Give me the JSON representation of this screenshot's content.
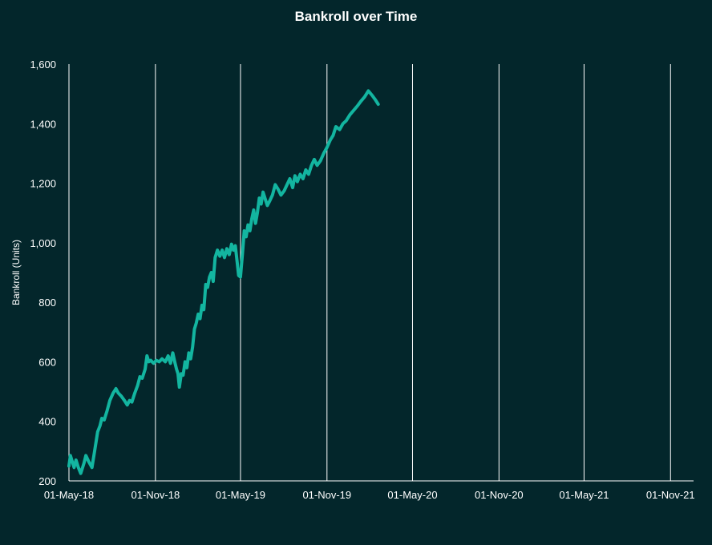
{
  "chart_data": {
    "type": "line",
    "title": "Bankroll over Time",
    "xlabel": "",
    "ylabel": "Bankroll (Units)",
    "ylim": [
      200,
      1600
    ],
    "xlim": [
      "2018-05-01",
      "2021-12-20"
    ],
    "grid": "vertical lines at x ticks",
    "legend": "none",
    "x_ticks": [
      {
        "date": "2018-05-01",
        "label": "01-May-18"
      },
      {
        "date": "2018-11-01",
        "label": "01-Nov-18"
      },
      {
        "date": "2019-05-01",
        "label": "01-May-19"
      },
      {
        "date": "2019-11-01",
        "label": "01-Nov-19"
      },
      {
        "date": "2020-05-01",
        "label": "01-May-20"
      },
      {
        "date": "2020-11-01",
        "label": "01-Nov-20"
      },
      {
        "date": "2021-05-01",
        "label": "01-May-21"
      },
      {
        "date": "2021-11-01",
        "label": "01-Nov-21"
      }
    ],
    "y_ticks": [
      {
        "value": 200,
        "label": "200"
      },
      {
        "value": 400,
        "label": "400"
      },
      {
        "value": 600,
        "label": "600"
      },
      {
        "value": 800,
        "label": "800"
      },
      {
        "value": 1000,
        "label": "1,000"
      },
      {
        "value": 1200,
        "label": "1,200"
      },
      {
        "value": 1400,
        "label": "1,400"
      },
      {
        "value": 1600,
        "label": "1,600"
      }
    ],
    "colors": {
      "background": "#03262b",
      "line": "#13b5a0",
      "grid": "#ffffff",
      "text": "#ffffff"
    },
    "series": [
      {
        "points": [
          [
            "2018-05-01",
            250
          ],
          [
            "2018-05-04",
            285
          ],
          [
            "2018-05-08",
            265
          ],
          [
            "2018-05-12",
            245
          ],
          [
            "2018-05-16",
            270
          ],
          [
            "2018-05-21",
            245
          ],
          [
            "2018-05-26",
            225
          ],
          [
            "2018-06-02",
            260
          ],
          [
            "2018-06-06",
            285
          ],
          [
            "2018-06-12",
            265
          ],
          [
            "2018-06-19",
            245
          ],
          [
            "2018-06-24",
            295
          ],
          [
            "2018-07-01",
            365
          ],
          [
            "2018-07-06",
            385
          ],
          [
            "2018-07-10",
            410
          ],
          [
            "2018-07-15",
            405
          ],
          [
            "2018-07-21",
            435
          ],
          [
            "2018-07-27",
            470
          ],
          [
            "2018-08-03",
            495
          ],
          [
            "2018-08-09",
            510
          ],
          [
            "2018-08-14",
            495
          ],
          [
            "2018-08-20",
            485
          ],
          [
            "2018-08-27",
            470
          ],
          [
            "2018-09-02",
            455
          ],
          [
            "2018-09-07",
            470
          ],
          [
            "2018-09-12",
            465
          ],
          [
            "2018-09-18",
            495
          ],
          [
            "2018-09-24",
            520
          ],
          [
            "2018-09-29",
            550
          ],
          [
            "2018-10-04",
            545
          ],
          [
            "2018-10-10",
            575
          ],
          [
            "2018-10-14",
            620
          ],
          [
            "2018-10-18",
            600
          ],
          [
            "2018-10-22",
            605
          ],
          [
            "2018-10-28",
            595
          ],
          [
            "2018-11-03",
            605
          ],
          [
            "2018-11-09",
            600
          ],
          [
            "2018-11-15",
            610
          ],
          [
            "2018-11-22",
            600
          ],
          [
            "2018-11-28",
            620
          ],
          [
            "2018-12-03",
            595
          ],
          [
            "2018-12-08",
            630
          ],
          [
            "2018-12-12",
            600
          ],
          [
            "2018-12-16",
            575
          ],
          [
            "2018-12-19",
            560
          ],
          [
            "2018-12-22",
            515
          ],
          [
            "2018-12-26",
            560
          ],
          [
            "2018-12-30",
            555
          ],
          [
            "2019-01-03",
            600
          ],
          [
            "2019-01-07",
            580
          ],
          [
            "2019-01-11",
            630
          ],
          [
            "2019-01-15",
            610
          ],
          [
            "2019-01-19",
            650
          ],
          [
            "2019-01-23",
            710
          ],
          [
            "2019-01-27",
            730
          ],
          [
            "2019-01-31",
            760
          ],
          [
            "2019-02-04",
            745
          ],
          [
            "2019-02-08",
            790
          ],
          [
            "2019-02-12",
            775
          ],
          [
            "2019-02-16",
            860
          ],
          [
            "2019-02-20",
            850
          ],
          [
            "2019-02-24",
            885
          ],
          [
            "2019-02-28",
            900
          ],
          [
            "2019-03-04",
            870
          ],
          [
            "2019-03-08",
            950
          ],
          [
            "2019-03-13",
            975
          ],
          [
            "2019-03-18",
            955
          ],
          [
            "2019-03-23",
            975
          ],
          [
            "2019-03-28",
            950
          ],
          [
            "2019-04-02",
            980
          ],
          [
            "2019-04-07",
            960
          ],
          [
            "2019-04-12",
            995
          ],
          [
            "2019-04-16",
            975
          ],
          [
            "2019-04-20",
            990
          ],
          [
            "2019-04-24",
            935
          ],
          [
            "2019-04-27",
            890
          ],
          [
            "2019-05-01",
            885
          ],
          [
            "2019-05-05",
            960
          ],
          [
            "2019-05-09",
            1040
          ],
          [
            "2019-05-13",
            1020
          ],
          [
            "2019-05-17",
            1060
          ],
          [
            "2019-05-21",
            1040
          ],
          [
            "2019-05-25",
            1080
          ],
          [
            "2019-05-29",
            1110
          ],
          [
            "2019-06-02",
            1065
          ],
          [
            "2019-06-06",
            1100
          ],
          [
            "2019-06-10",
            1150
          ],
          [
            "2019-06-14",
            1130
          ],
          [
            "2019-06-18",
            1170
          ],
          [
            "2019-06-22",
            1150
          ],
          [
            "2019-06-27",
            1125
          ],
          [
            "2019-07-02",
            1140
          ],
          [
            "2019-07-08",
            1160
          ],
          [
            "2019-07-14",
            1195
          ],
          [
            "2019-07-20",
            1180
          ],
          [
            "2019-07-26",
            1160
          ],
          [
            "2019-08-02",
            1175
          ],
          [
            "2019-08-08",
            1195
          ],
          [
            "2019-08-14",
            1215
          ],
          [
            "2019-08-20",
            1185
          ],
          [
            "2019-08-25",
            1225
          ],
          [
            "2019-08-30",
            1205
          ],
          [
            "2019-09-05",
            1230
          ],
          [
            "2019-09-11",
            1215
          ],
          [
            "2019-09-17",
            1245
          ],
          [
            "2019-09-23",
            1230
          ],
          [
            "2019-09-29",
            1260
          ],
          [
            "2019-10-05",
            1280
          ],
          [
            "2019-10-11",
            1260
          ],
          [
            "2019-10-18",
            1275
          ],
          [
            "2019-10-25",
            1300
          ],
          [
            "2019-11-01",
            1320
          ],
          [
            "2019-11-08",
            1345
          ],
          [
            "2019-11-14",
            1360
          ],
          [
            "2019-11-20",
            1390
          ],
          [
            "2019-11-28",
            1380
          ],
          [
            "2019-12-05",
            1400
          ],
          [
            "2019-12-12",
            1410
          ],
          [
            "2019-12-20",
            1430
          ],
          [
            "2019-12-28",
            1445
          ],
          [
            "2020-01-05",
            1460
          ],
          [
            "2020-01-12",
            1475
          ],
          [
            "2020-01-20",
            1490
          ],
          [
            "2020-01-28",
            1510
          ],
          [
            "2020-02-05",
            1495
          ],
          [
            "2020-02-12",
            1480
          ],
          [
            "2020-02-18",
            1465
          ]
        ]
      }
    ]
  }
}
